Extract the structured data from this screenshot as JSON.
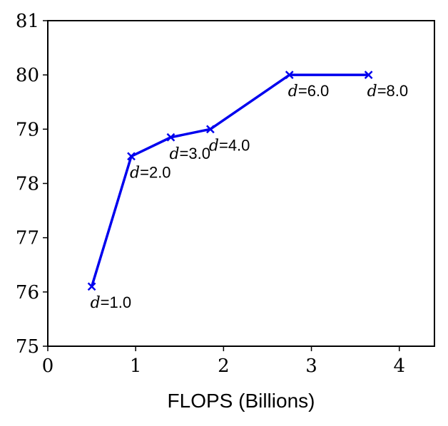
{
  "chart_data": {
    "type": "line",
    "xlabel": "FLOPS (Billions)",
    "ylabel": "",
    "xlim": [
      0,
      4.4
    ],
    "ylim": [
      75,
      81
    ],
    "xticks": [
      0,
      1,
      2,
      3,
      4
    ],
    "yticks": [
      75,
      76,
      77,
      78,
      79,
      80,
      81
    ],
    "xtick_labels": [
      "0",
      "1",
      "2",
      "3",
      "4"
    ],
    "ytick_labels": [
      "75",
      "76",
      "77",
      "78",
      "79",
      "80",
      "81"
    ],
    "grid": false,
    "series": [
      {
        "color": "#0000ee",
        "marker": "x",
        "x": [
          0.5,
          0.95,
          1.4,
          1.85,
          2.75,
          3.65
        ],
        "y": [
          76.1,
          78.5,
          78.85,
          79.0,
          80.0,
          80.0
        ],
        "labels": [
          {
            "var": "d",
            "text": "=1.0"
          },
          {
            "var": "d",
            "text": "=2.0"
          },
          {
            "var": "d",
            "text": "=3.0"
          },
          {
            "var": "d",
            "text": "=4.0"
          },
          {
            "var": "d",
            "text": "=6.0"
          },
          {
            "var": "d",
            "text": "=8.0"
          }
        ]
      }
    ]
  }
}
